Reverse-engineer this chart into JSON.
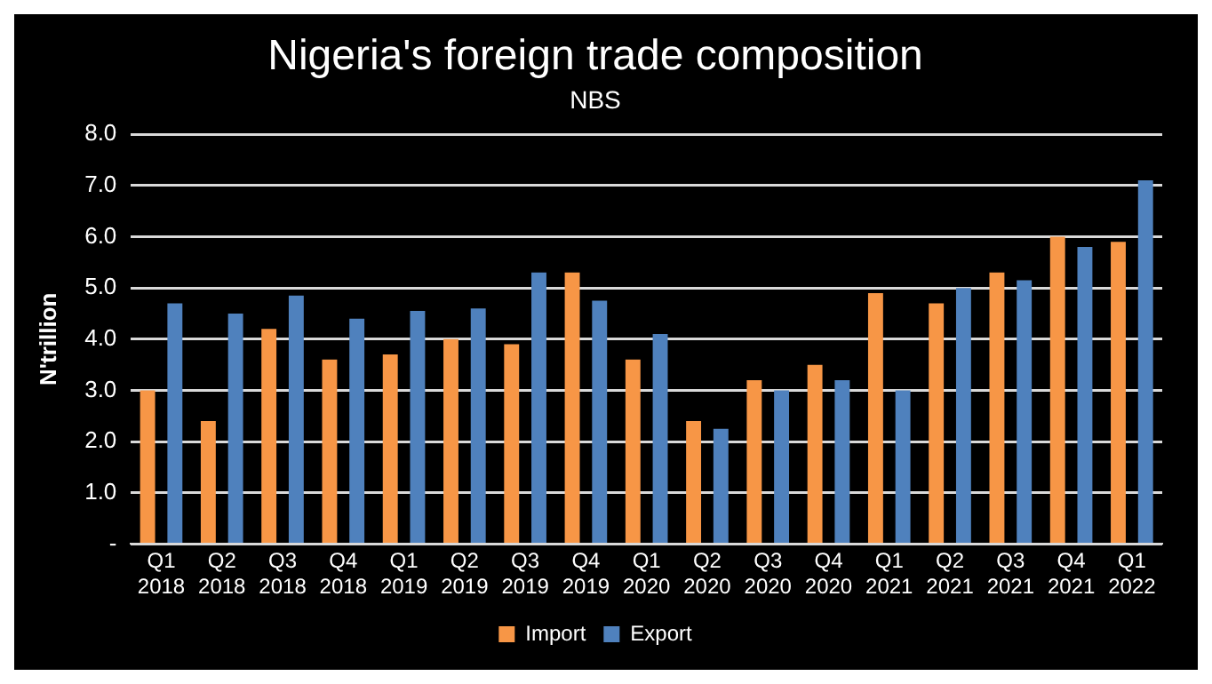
{
  "chart_data": {
    "type": "bar",
    "title": "Nigeria's foreign trade composition",
    "subtitle": "NBS",
    "ylabel": "N'trillion",
    "categories": [
      "Q1 2018",
      "Q2 2018",
      "Q3 2018",
      "Q4 2018",
      "Q1 2019",
      "Q2 2019",
      "Q3 2019",
      "Q4 2019",
      "Q1 2020",
      "Q2 2020",
      "Q3 2020",
      "Q4 2020",
      "Q1 2021",
      "Q2 2021",
      "Q3 2021",
      "Q4 2021",
      "Q1 2022"
    ],
    "series": [
      {
        "name": "Import",
        "color": "#f79646",
        "values": [
          3.0,
          2.4,
          4.2,
          3.6,
          3.7,
          4.0,
          3.9,
          5.3,
          3.6,
          2.4,
          3.2,
          3.5,
          4.9,
          4.7,
          5.3,
          6.0,
          5.9
        ]
      },
      {
        "name": "Export",
        "color": "#4f81bd",
        "values": [
          4.7,
          4.5,
          4.85,
          4.4,
          4.55,
          4.6,
          5.3,
          4.75,
          4.1,
          2.25,
          3.0,
          3.2,
          3.0,
          5.0,
          5.15,
          5.8,
          7.1
        ]
      }
    ],
    "ylim": [
      0,
      8
    ],
    "yticks": [
      {
        "value": 0,
        "label": "-"
      },
      {
        "value": 1,
        "label": "1.0"
      },
      {
        "value": 2,
        "label": "2.0"
      },
      {
        "value": 3,
        "label": "3.0"
      },
      {
        "value": 4,
        "label": "4.0"
      },
      {
        "value": 5,
        "label": "5.0"
      },
      {
        "value": 6,
        "label": "6.0"
      },
      {
        "value": 7,
        "label": "7.0"
      },
      {
        "value": 8,
        "label": "8.0"
      }
    ],
    "grid": "y",
    "legend": "bottom"
  }
}
